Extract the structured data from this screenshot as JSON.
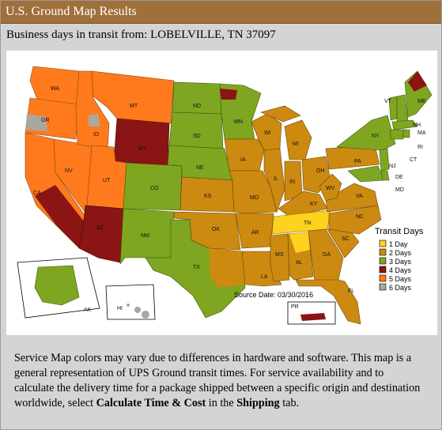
{
  "header": {
    "title": "U.S. Ground Map Results"
  },
  "subtitle": "Business days in transit from: LOBELVILLE, TN 37097",
  "map": {
    "source_date": "Source Date: 03/30/2016",
    "legend": {
      "title": "Transit Days",
      "items": [
        {
          "label": "1 Day",
          "color": "#ffd21f"
        },
        {
          "label": "2 Days",
          "color": "#cc8a10"
        },
        {
          "label": "3 Days",
          "color": "#7ea620"
        },
        {
          "label": "4 Days",
          "color": "#8b1414"
        },
        {
          "label": "5 Days",
          "color": "#ff7a1c"
        },
        {
          "label": "6 Days",
          "color": "#a8a8a0"
        }
      ]
    },
    "states": {
      "WA": "WA",
      "OR": "OR",
      "CA": "CA",
      "NV": "NV",
      "ID": "ID",
      "MT": "MT",
      "WY": "WY",
      "UT": "UT",
      "AZ": "AZ",
      "CO": "CO",
      "NM": "NM",
      "ND": "ND",
      "SD": "SD",
      "NE": "NE",
      "KS": "KS",
      "OK": "OK",
      "TX": "TX",
      "MN": "MN",
      "IA": "IA",
      "MO": "MO",
      "AR": "AR",
      "LA": "LA",
      "WI": "WI",
      "IL": "IL",
      "MS": "MS",
      "MI": "MI",
      "IN": "IN",
      "KY": "KY",
      "TN": "TN",
      "AL": "AL",
      "OH": "OH",
      "WV": "WV",
      "VA": "VA",
      "NC": "NC",
      "SC": "SC",
      "GA": "GA",
      "FL": "FL",
      "PA": "PA",
      "NY": "NY",
      "VT": "VT",
      "NH": "NH",
      "ME": "ME",
      "MA": "MA",
      "RI": "RI",
      "CT": "CT",
      "NJ": "NJ",
      "DE": "DE",
      "MD": "MD",
      "AK": "AK",
      "HI": "HI",
      "PR": "PR"
    }
  },
  "footer": {
    "text_before_1": "Service Map colors may vary due to differences in hardware and software. This map is a general representation of UPS Ground transit times. For service availability and to calculate the delivery time for a package shipped between a specific origin and destination worldwide, select ",
    "link_calc": "Calculate Time & Cost",
    "text_middle": " in the ",
    "link_shipping": "Shipping",
    "text_after": " tab."
  }
}
